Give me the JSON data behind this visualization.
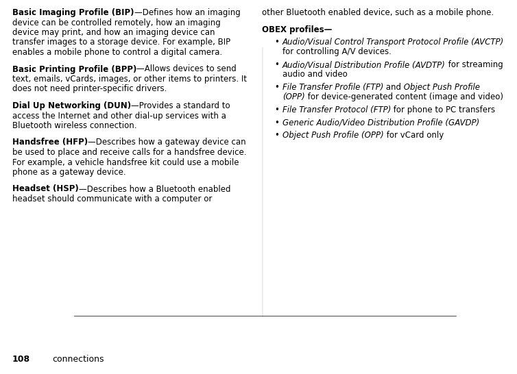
{
  "background_color": "#ffffff",
  "figsize": [
    7.54,
    5.46
  ],
  "dpi": 100,
  "footer_number": "108",
  "footer_text": "connections",
  "left_col_paragraphs": [
    {
      "bold_part": "Basic Imaging Profile (BIP)",
      "rest": "—Defines how an imaging device can be controlled remotely, how an imaging device may print, and how an imaging device can transfer images to a storage device. For example, BIP enables a mobile phone to control a digital camera."
    },
    {
      "bold_part": "Basic Printing Profile (BPP)",
      "rest": "—Allows devices to send text, emails, vCards, images, or other items to printers. It does not need printer-specific drivers."
    },
    {
      "bold_part": "Dial Up Networking (DUN)",
      "rest": "—Provides a standard to access the Internet and other dial-up services with a Bluetooth wireless connection."
    },
    {
      "bold_part": "Handsfree (HFP)",
      "rest": "—Describes how a gateway device can be used to place and receive calls for a handsfree device. For example, a vehicle handsfree kit could use a mobile phone as a gateway device."
    },
    {
      "bold_part": "Headset (HSP)",
      "rest": "—Describes how a Bluetooth enabled headset should communicate with a computer or"
    }
  ],
  "right_col_intro": "other Bluetooth enabled device, such as a mobile phone.",
  "right_col_header": "OBEX profiles—",
  "bullets": [
    {
      "segments": [
        {
          "text": "Audio/Visual Control Transport Protocol Profile (AVCTP)",
          "style": "italic"
        },
        {
          "text": " for controlling A/V devices.",
          "style": "normal"
        }
      ]
    },
    {
      "segments": [
        {
          "text": "Audio/Visual Distribution Profile (AVDTP)",
          "style": "italic"
        },
        {
          "text": " for streaming audio and video",
          "style": "normal"
        }
      ]
    },
    {
      "segments": [
        {
          "text": "File Transfer Profile (FTP)",
          "style": "italic"
        },
        {
          "text": " and ",
          "style": "normal"
        },
        {
          "text": "Object Push Profile (OPP)",
          "style": "italic"
        },
        {
          "text": " for device-generated content (image and video)",
          "style": "normal"
        }
      ]
    },
    {
      "segments": [
        {
          "text": "File Transfer Protocol (FTP)",
          "style": "italic"
        },
        {
          "text": " for phone to PC transfers",
          "style": "normal"
        }
      ]
    },
    {
      "segments": [
        {
          "text": "Generic Audio/Video Distribution Profile (GAVDP)",
          "style": "italic"
        }
      ]
    },
    {
      "segments": [
        {
          "text": "Object Push Profile (OPP)",
          "style": "italic"
        },
        {
          "text": " for vCard only",
          "style": "normal"
        }
      ]
    }
  ]
}
